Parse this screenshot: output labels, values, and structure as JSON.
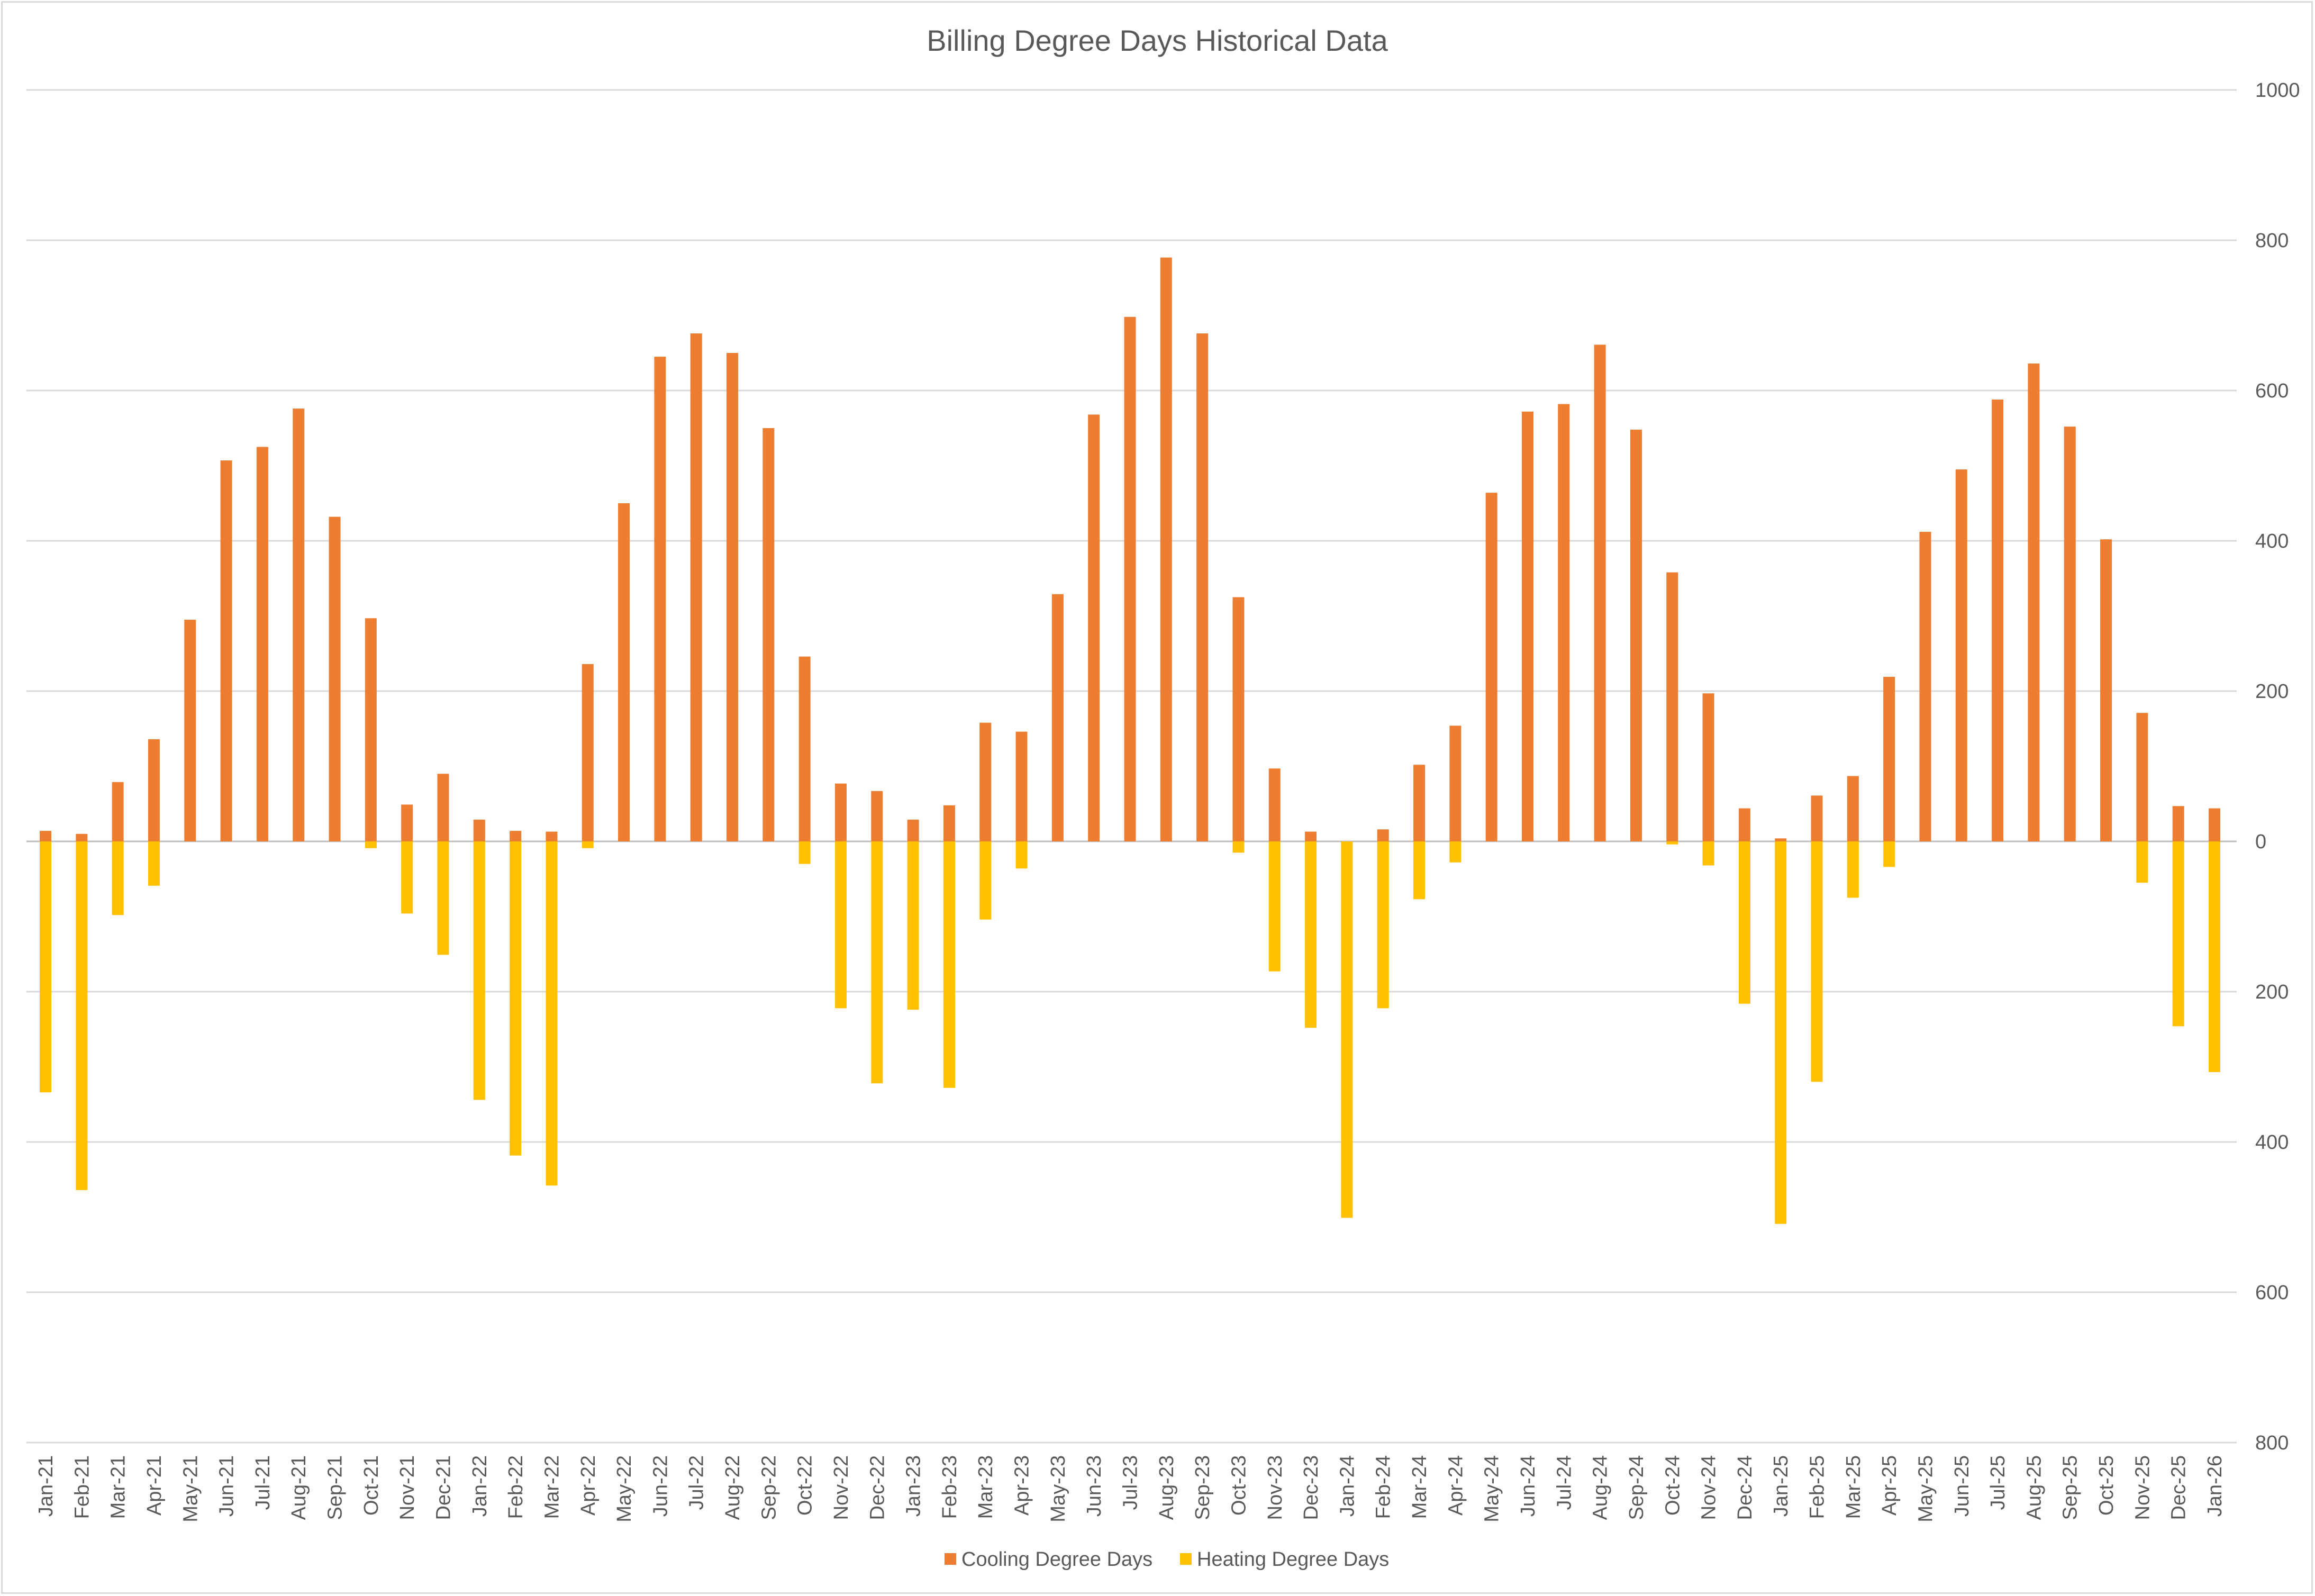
{
  "chart_data": {
    "type": "bar",
    "title": "Billing Degree Days Historical Data",
    "xlabel": "",
    "ylabel": "",
    "ylim": [
      -800,
      1000
    ],
    "y_axis_position": "right",
    "y_ticks": [
      1000,
      800,
      600,
      400,
      200,
      0,
      -200,
      -400,
      -600,
      -800
    ],
    "y_tick_labels": [
      "1000",
      "800",
      "600",
      "400",
      "200",
      "0",
      "200",
      "400",
      "600",
      "800"
    ],
    "grid": true,
    "legend": "bottom",
    "categories": [
      "Jan-21",
      "Feb-21",
      "Mar-21",
      "Apr-21",
      "May-21",
      "Jun-21",
      "Jul-21",
      "Aug-21",
      "Sep-21",
      "Oct-21",
      "Nov-21",
      "Dec-21",
      "Jan-22",
      "Feb-22",
      "Mar-22",
      "Apr-22",
      "May-22",
      "Jun-22",
      "Jul-22",
      "Aug-22",
      "Sep-22",
      "Oct-22",
      "Nov-22",
      "Dec-22",
      "Jan-23",
      "Feb-23",
      "Mar-23",
      "Apr-23",
      "May-23",
      "Jun-23",
      "Jul-23",
      "Aug-23",
      "Sep-23",
      "Oct-23",
      "Nov-23",
      "Dec-23",
      "Jan-24",
      "Feb-24",
      "Mar-24",
      "Apr-24",
      "May-24",
      "Jun-24",
      "Jul-24",
      "Aug-24",
      "Sep-24",
      "Oct-24",
      "Nov-24",
      "Dec-24",
      "Jan-25",
      "Feb-25",
      "Mar-25",
      "Apr-25",
      "May-25",
      "Jun-25",
      "Jul-25",
      "Aug-25",
      "Sep-25",
      "Oct-25",
      "Nov-25",
      "Dec-25",
      "Jan-26"
    ],
    "series": [
      {
        "name": "Cooling Degree Days",
        "color": "#ED7D31",
        "direction": "up",
        "values": [
          14,
          10,
          79,
          136,
          295,
          507,
          525,
          576,
          432,
          297,
          49,
          90,
          29,
          14,
          13,
          236,
          450,
          645,
          676,
          650,
          550,
          246,
          77,
          67,
          29,
          48,
          158,
          146,
          329,
          568,
          698,
          777,
          676,
          325,
          97,
          13,
          0,
          16,
          102,
          154,
          464,
          572,
          582,
          661,
          548,
          358,
          197,
          44,
          4,
          61,
          87,
          219,
          412,
          495,
          588,
          636,
          552,
          402,
          171,
          47,
          44
        ]
      },
      {
        "name": "Heating Degree Days",
        "color": "#FFC000",
        "direction": "down",
        "values": [
          334,
          464,
          98,
          59,
          0,
          0,
          0,
          0,
          0,
          9,
          96,
          151,
          344,
          418,
          458,
          9,
          0,
          0,
          0,
          0,
          0,
          30,
          222,
          322,
          224,
          328,
          104,
          36,
          0,
          0,
          0,
          0,
          0,
          15,
          173,
          248,
          501,
          222,
          77,
          28,
          0,
          0,
          0,
          0,
          0,
          4,
          32,
          216,
          509,
          320,
          75,
          34,
          0,
          0,
          0,
          0,
          0,
          0,
          55,
          246,
          307
        ]
      }
    ]
  }
}
